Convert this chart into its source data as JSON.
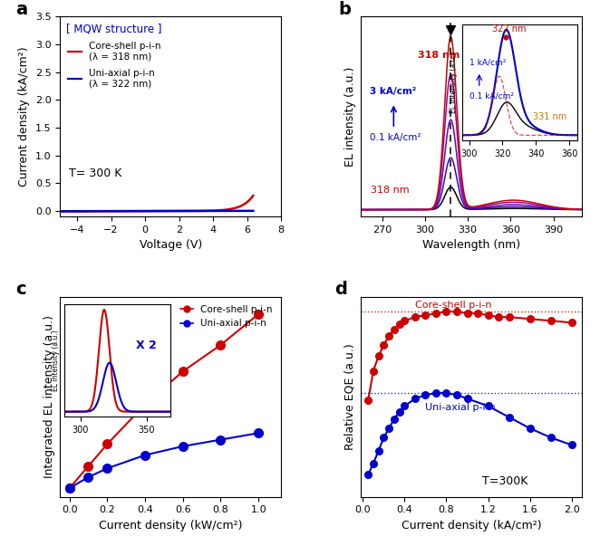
{
  "panel_a": {
    "xlabel": "Voltage (V)",
    "ylabel": "Current density (kA/cm²)",
    "xlim": [
      -5,
      8
    ],
    "ylim": [
      -0.1,
      3.5
    ],
    "xticks": [
      -4,
      -2,
      0,
      2,
      4,
      6,
      8
    ],
    "yticks": [
      0.0,
      0.5,
      1.0,
      1.5,
      2.0,
      2.5,
      3.0,
      3.5
    ],
    "legend_title": "[ MQW structure ]",
    "annotation": "T= 300 K"
  },
  "panel_b": {
    "xlabel": "Wavelength (nm)",
    "ylabel": "EL intensity (a.u.)",
    "xlim": [
      255,
      410
    ],
    "xticks": [
      270,
      300,
      330,
      360,
      390
    ]
  },
  "panel_c": {
    "xlabel": "Current density (kW/cm²)",
    "ylabel": "Integrated EL intensity (a.u.)",
    "xlim": [
      -0.05,
      1.12
    ],
    "xticks": [
      0.0,
      0.2,
      0.4,
      0.6,
      0.8,
      1.0
    ],
    "red_x": [
      0.0,
      0.1,
      0.2,
      0.4,
      0.6,
      0.8,
      1.0
    ],
    "red_y": [
      0.12,
      0.22,
      0.32,
      0.5,
      0.65,
      0.77,
      0.91
    ],
    "blue_x": [
      0.0,
      0.1,
      0.2,
      0.4,
      0.6,
      0.8,
      1.0
    ],
    "blue_y": [
      0.12,
      0.17,
      0.21,
      0.27,
      0.31,
      0.34,
      0.37
    ]
  },
  "panel_d": {
    "xlabel": "Current density (kA/cm²)",
    "ylabel": "Relative EQE (a.u.)",
    "xlim": [
      -0.02,
      2.1
    ],
    "ylim": [
      0.0,
      1.08
    ],
    "xticks": [
      0.0,
      0.4,
      0.8,
      1.2,
      1.6,
      2.0
    ],
    "annotation": "T=300K",
    "red_x": [
      0.05,
      0.1,
      0.15,
      0.2,
      0.25,
      0.3,
      0.35,
      0.4,
      0.5,
      0.6,
      0.7,
      0.8,
      0.9,
      1.0,
      1.1,
      1.2,
      1.3,
      1.4,
      1.6,
      1.8,
      2.0
    ],
    "red_y": [
      0.52,
      0.68,
      0.76,
      0.82,
      0.87,
      0.9,
      0.93,
      0.95,
      0.97,
      0.98,
      0.99,
      1.0,
      1.0,
      0.99,
      0.99,
      0.98,
      0.97,
      0.97,
      0.96,
      0.95,
      0.94
    ],
    "blue_x": [
      0.05,
      0.1,
      0.15,
      0.2,
      0.25,
      0.3,
      0.35,
      0.4,
      0.5,
      0.6,
      0.7,
      0.8,
      0.9,
      1.0,
      1.2,
      1.4,
      1.6,
      1.8,
      2.0
    ],
    "blue_y": [
      0.12,
      0.18,
      0.25,
      0.32,
      0.37,
      0.42,
      0.46,
      0.49,
      0.53,
      0.55,
      0.56,
      0.56,
      0.55,
      0.53,
      0.49,
      0.43,
      0.37,
      0.32,
      0.28
    ]
  },
  "colors": {
    "red": "#cc0000",
    "blue": "#0000cc",
    "black": "#000000",
    "purple1": "#4400aa",
    "purple2": "#6600bb",
    "purple3": "#990099"
  }
}
